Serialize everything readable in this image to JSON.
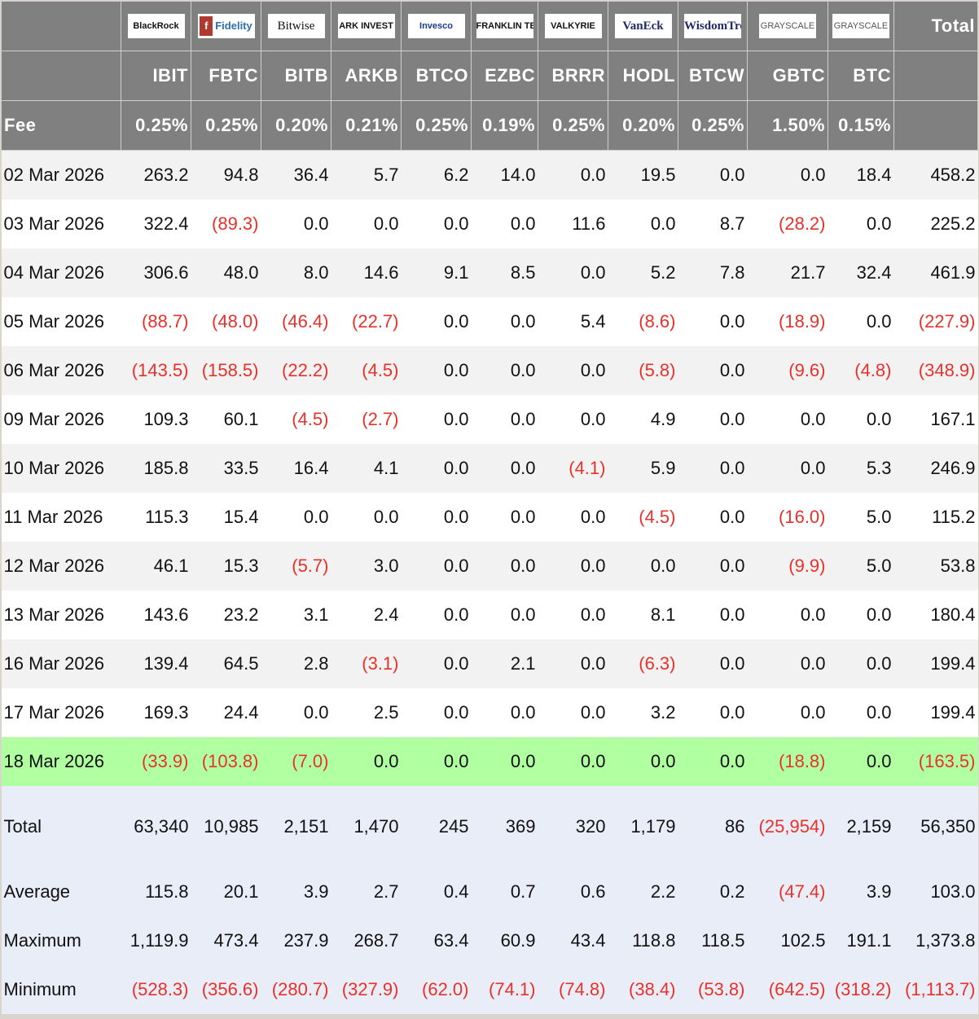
{
  "colors": {
    "header_bg": "#808080",
    "negative": "#e8312b",
    "highlight_row": "#b0ffa0",
    "summary_bg": "#e9edf7",
    "row_alt": "#f2f2f2"
  },
  "header": {
    "total_label": "Total",
    "fee_label": "Fee",
    "issuers": [
      {
        "logo": "BlackRock",
        "style": "",
        "ticker": "IBIT",
        "fee": "0.25%"
      },
      {
        "logo": "Fidelity",
        "style": "fid",
        "ticker": "FBTC",
        "fee": "0.25%"
      },
      {
        "logo": "Bitwise",
        "style": "serif",
        "ticker": "BITB",
        "fee": "0.20%"
      },
      {
        "logo": "ARK INVEST",
        "style": "",
        "ticker": "ARKB",
        "fee": "0.21%"
      },
      {
        "logo": "Invesco",
        "style": "blue",
        "ticker": "BTCO",
        "fee": "0.25%"
      },
      {
        "logo": "FRANKLIN TEMPLETON",
        "style": "",
        "ticker": "EZBC",
        "fee": "0.19%"
      },
      {
        "logo": "VALKYRIE",
        "style": "",
        "ticker": "BRRR",
        "fee": "0.25%"
      },
      {
        "logo": "VanEck",
        "style": "navy",
        "ticker": "HODL",
        "fee": "0.20%"
      },
      {
        "logo": "WisdomTree",
        "style": "navy",
        "ticker": "BTCW",
        "fee": "0.25%"
      },
      {
        "logo": "GRAYSCALE",
        "style": "gray",
        "ticker": "GBTC",
        "fee": "1.50%"
      },
      {
        "logo": "GRAYSCALE",
        "style": "gray",
        "ticker": "BTC",
        "fee": "0.15%"
      }
    ]
  },
  "rows": [
    {
      "date": "02 Mar 2026",
      "values": [
        "263.2",
        "94.8",
        "36.4",
        "5.7",
        "6.2",
        "14.0",
        "0.0",
        "19.5",
        "0.0",
        "0.0",
        "18.4",
        "458.2"
      ]
    },
    {
      "date": "03 Mar 2026",
      "values": [
        "322.4",
        "(89.3)",
        "0.0",
        "0.0",
        "0.0",
        "0.0",
        "11.6",
        "0.0",
        "8.7",
        "(28.2)",
        "0.0",
        "225.2"
      ]
    },
    {
      "date": "04 Mar 2026",
      "values": [
        "306.6",
        "48.0",
        "8.0",
        "14.6",
        "9.1",
        "8.5",
        "0.0",
        "5.2",
        "7.8",
        "21.7",
        "32.4",
        "461.9"
      ]
    },
    {
      "date": "05 Mar 2026",
      "values": [
        "(88.7)",
        "(48.0)",
        "(46.4)",
        "(22.7)",
        "0.0",
        "0.0",
        "5.4",
        "(8.6)",
        "0.0",
        "(18.9)",
        "0.0",
        "(227.9)"
      ]
    },
    {
      "date": "06 Mar 2026",
      "values": [
        "(143.5)",
        "(158.5)",
        "(22.2)",
        "(4.5)",
        "0.0",
        "0.0",
        "0.0",
        "(5.8)",
        "0.0",
        "(9.6)",
        "(4.8)",
        "(348.9)"
      ]
    },
    {
      "date": "09 Mar 2026",
      "values": [
        "109.3",
        "60.1",
        "(4.5)",
        "(2.7)",
        "0.0",
        "0.0",
        "0.0",
        "4.9",
        "0.0",
        "0.0",
        "0.0",
        "167.1"
      ]
    },
    {
      "date": "10 Mar 2026",
      "values": [
        "185.8",
        "33.5",
        "16.4",
        "4.1",
        "0.0",
        "0.0",
        "(4.1)",
        "5.9",
        "0.0",
        "0.0",
        "5.3",
        "246.9"
      ]
    },
    {
      "date": "11 Mar 2026",
      "values": [
        "115.3",
        "15.4",
        "0.0",
        "0.0",
        "0.0",
        "0.0",
        "0.0",
        "(4.5)",
        "0.0",
        "(16.0)",
        "5.0",
        "115.2"
      ]
    },
    {
      "date": "12 Mar 2026",
      "values": [
        "46.1",
        "15.3",
        "(5.7)",
        "3.0",
        "0.0",
        "0.0",
        "0.0",
        "0.0",
        "0.0",
        "(9.9)",
        "5.0",
        "53.8"
      ]
    },
    {
      "date": "13 Mar 2026",
      "values": [
        "143.6",
        "23.2",
        "3.1",
        "2.4",
        "0.0",
        "0.0",
        "0.0",
        "8.1",
        "0.0",
        "0.0",
        "0.0",
        "180.4"
      ]
    },
    {
      "date": "16 Mar 2026",
      "values": [
        "139.4",
        "64.5",
        "2.8",
        "(3.1)",
        "0.0",
        "2.1",
        "0.0",
        "(6.3)",
        "0.0",
        "0.0",
        "0.0",
        "199.4"
      ]
    },
    {
      "date": "17 Mar 2026",
      "values": [
        "169.3",
        "24.4",
        "0.0",
        "2.5",
        "0.0",
        "0.0",
        "0.0",
        "3.2",
        "0.0",
        "0.0",
        "0.0",
        "199.4"
      ]
    },
    {
      "date": "18 Mar 2026",
      "highlight": true,
      "values": [
        "(33.9)",
        "(103.8)",
        "(7.0)",
        "0.0",
        "0.0",
        "0.0",
        "0.0",
        "0.0",
        "0.0",
        "(18.8)",
        "0.0",
        "(163.5)"
      ]
    }
  ],
  "summary": [
    {
      "label": "Total",
      "values": [
        "63,340",
        "10,985",
        "2,151",
        "1,470",
        "245",
        "369",
        "320",
        "1,179",
        "86",
        "(25,954)",
        "2,159",
        "56,350"
      ]
    },
    {
      "label": "Average",
      "values": [
        "115.8",
        "20.1",
        "3.9",
        "2.7",
        "0.4",
        "0.7",
        "0.6",
        "2.2",
        "0.2",
        "(47.4)",
        "3.9",
        "103.0"
      ]
    },
    {
      "label": "Maximum",
      "values": [
        "1,119.9",
        "473.4",
        "237.9",
        "268.7",
        "63.4",
        "60.9",
        "43.4",
        "118.8",
        "118.5",
        "102.5",
        "191.1",
        "1,373.8"
      ]
    },
    {
      "label": "Minimum",
      "values": [
        "(528.3)",
        "(356.6)",
        "(280.7)",
        "(327.9)",
        "(62.0)",
        "(74.1)",
        "(74.8)",
        "(38.4)",
        "(53.8)",
        "(642.5)",
        "(318.2)",
        "(1,113.7)"
      ]
    }
  ]
}
